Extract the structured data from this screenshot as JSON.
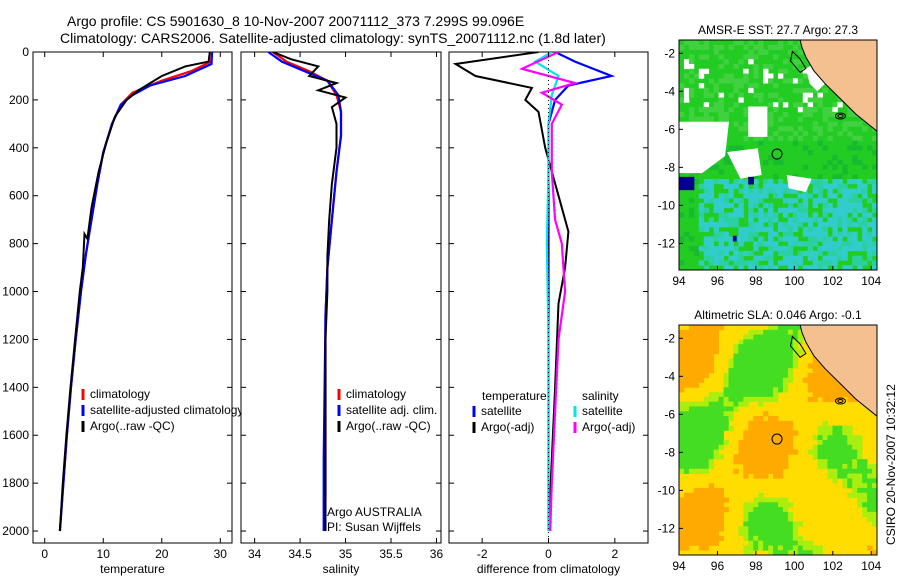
{
  "header": {
    "line1": "Argo profile: CS 5901630_8 10-Nov-2007 20071112_373 7.299S 99.096E",
    "line2": "Climatology: CARS2006. Satellite-adjusted climatology: synTS_20071112.nc (1.8d later)"
  },
  "side_text": "CSIRO 20-Nov-2007 10:32:12",
  "chart_data": [
    {
      "type": "line",
      "id": "temperature",
      "xlabel": "temperature",
      "ylabel": "",
      "xlim": [
        -2,
        32
      ],
      "ylim": [
        2050,
        0
      ],
      "xticks": [
        0,
        10,
        20,
        30
      ],
      "yticks": [
        0,
        200,
        400,
        600,
        800,
        1000,
        1200,
        1400,
        1600,
        1800,
        2000
      ],
      "legend": {
        "placement": "lower-center",
        "entries": [
          "climatology",
          "satellite-adjusted climatology",
          "Argo(..raw -QC)"
        ]
      },
      "series": [
        {
          "name": "climatology",
          "color": "#ff0000",
          "points": [
            [
              28.6,
              0
            ],
            [
              28.4,
              40
            ],
            [
              25,
              80
            ],
            [
              20,
              120
            ],
            [
              15,
              170
            ],
            [
              13,
              220
            ],
            [
              11.5,
              300
            ],
            [
              10,
              420
            ],
            [
              9,
              550
            ],
            [
              8,
              700
            ],
            [
              7,
              850
            ],
            [
              6.2,
              1000
            ],
            [
              5.3,
              1200
            ],
            [
              4.5,
              1400
            ],
            [
              3.8,
              1600
            ],
            [
              3.2,
              1800
            ],
            [
              2.6,
              2000
            ]
          ]
        },
        {
          "name": "satellite-adjusted climatology",
          "color": "#0000ff",
          "points": [
            [
              28.6,
              0
            ],
            [
              28.5,
              50
            ],
            [
              24,
              100
            ],
            [
              18,
              140
            ],
            [
              15,
              180
            ],
            [
              13,
              220
            ],
            [
              11.5,
              300
            ],
            [
              10,
              420
            ],
            [
              9,
              550
            ],
            [
              8,
              700
            ],
            [
              7,
              850
            ],
            [
              6.2,
              1000
            ],
            [
              5.3,
              1200
            ],
            [
              4.5,
              1400
            ],
            [
              3.8,
              1600
            ],
            [
              3.2,
              1800
            ],
            [
              2.6,
              2000
            ]
          ]
        },
        {
          "name": "Argo(..raw -QC)",
          "color": "#000000",
          "points": [
            [
              28.2,
              0
            ],
            [
              28,
              40
            ],
            [
              24,
              60
            ],
            [
              20,
              100
            ],
            [
              16,
              160
            ],
            [
              14,
              200
            ],
            [
              12,
              270
            ],
            [
              10.5,
              380
            ],
            [
              9.2,
              500
            ],
            [
              8,
              650
            ],
            [
              7.3,
              780
            ],
            [
              6.8,
              760
            ],
            [
              6.5,
              900
            ],
            [
              6,
              1000
            ],
            [
              5.2,
              1200
            ],
            [
              4.4,
              1400
            ],
            [
              3.7,
              1600
            ],
            [
              3.1,
              1800
            ],
            [
              2.6,
              2000
            ]
          ]
        }
      ]
    },
    {
      "type": "line",
      "id": "salinity",
      "xlabel": "salinity",
      "ylabel": "",
      "xlim": [
        33.85,
        36.05
      ],
      "ylim": [
        2050,
        0
      ],
      "xticks": [
        34,
        34.5,
        35,
        35.5,
        36
      ],
      "legend": {
        "placement": "lower-center",
        "entries": [
          "climatology",
          "satellite adj. clim.",
          "Argo(..raw -QC)"
        ]
      },
      "annotation": [
        "Argo AUSTRALIA",
        "PI: Susan Wijffels"
      ],
      "series": [
        {
          "name": "climatology",
          "color": "#ff0000",
          "points": [
            [
              34.2,
              0
            ],
            [
              34.35,
              40
            ],
            [
              34.6,
              80
            ],
            [
              34.8,
              120
            ],
            [
              34.9,
              180
            ],
            [
              34.95,
              250
            ],
            [
              34.95,
              350
            ],
            [
              34.9,
              500
            ],
            [
              34.85,
              700
            ],
            [
              34.8,
              900
            ],
            [
              34.78,
              1100
            ],
            [
              34.78,
              1400
            ],
            [
              34.78,
              1700
            ],
            [
              34.78,
              1870
            ]
          ]
        },
        {
          "name": "satellite adj. clim.",
          "color": "#0000ff",
          "points": [
            [
              34.15,
              0
            ],
            [
              34.3,
              40
            ],
            [
              34.55,
              80
            ],
            [
              34.8,
              120
            ],
            [
              34.92,
              180
            ],
            [
              34.95,
              250
            ],
            [
              34.95,
              350
            ],
            [
              34.9,
              500
            ],
            [
              34.85,
              700
            ],
            [
              34.8,
              900
            ],
            [
              34.78,
              1100
            ],
            [
              34.77,
              1400
            ],
            [
              34.76,
              1700
            ],
            [
              34.76,
              2000
            ]
          ]
        },
        {
          "name": "Argo(..raw -QC)",
          "color": "#000000",
          "points": [
            [
              34.2,
              0
            ],
            [
              34.4,
              30
            ],
            [
              34.7,
              60
            ],
            [
              34.6,
              100
            ],
            [
              34.9,
              130
            ],
            [
              34.7,
              160
            ],
            [
              35.0,
              190
            ],
            [
              34.85,
              230
            ],
            [
              34.9,
              300
            ],
            [
              34.9,
              400
            ],
            [
              34.85,
              550
            ],
            [
              34.82,
              700
            ],
            [
              34.8,
              850
            ],
            [
              34.8,
              1000
            ],
            [
              34.78,
              1200
            ],
            [
              34.78,
              1500
            ],
            [
              34.78,
              1800
            ],
            [
              34.78,
              2000
            ]
          ]
        }
      ]
    },
    {
      "type": "line",
      "id": "difference",
      "xlabel": "difference from climatology",
      "ylabel": "",
      "xlim": [
        -3,
        3
      ],
      "ylim": [
        2050,
        0
      ],
      "xticks": [
        -2,
        0,
        2
      ],
      "legend": {
        "placement": "lower-center",
        "columns": [
          {
            "title": "temperature",
            "entries": [
              "satellite",
              "Argo(-adj)"
            ]
          },
          {
            "title": "salinity",
            "entries": [
              "satellite",
              "Argo(-adj)"
            ]
          }
        ]
      },
      "series": [
        {
          "name": "temperature satellite",
          "color": "#0000ff",
          "points": [
            [
              0.2,
              0
            ],
            [
              0.8,
              40
            ],
            [
              1.9,
              100
            ],
            [
              0.6,
              140
            ],
            [
              0.2,
              200
            ],
            [
              0,
              300
            ],
            [
              0,
              500
            ],
            [
              0,
              700
            ],
            [
              0,
              1000
            ],
            [
              0,
              1500
            ],
            [
              0,
              2000
            ]
          ]
        },
        {
          "name": "temperature Argo(-adj)",
          "color": "#000000",
          "points": [
            [
              -0.3,
              0
            ],
            [
              -2.8,
              50
            ],
            [
              -2.2,
              100
            ],
            [
              -0.5,
              150
            ],
            [
              -0.7,
              200
            ],
            [
              -0.3,
              250
            ],
            [
              -0.1,
              400
            ],
            [
              0.3,
              600
            ],
            [
              0.6,
              750
            ],
            [
              0.5,
              900
            ],
            [
              0.3,
              1050
            ],
            [
              0.2,
              1400
            ],
            [
              0.1,
              1700
            ],
            [
              0,
              2000
            ]
          ]
        },
        {
          "name": "salinity satellite",
          "color": "#00e5e5",
          "points": [
            [
              0.1,
              0
            ],
            [
              -0.4,
              40
            ],
            [
              0.3,
              100
            ],
            [
              0.1,
              180
            ],
            [
              0,
              300
            ],
            [
              0,
              500
            ],
            [
              -0.05,
              800
            ],
            [
              0,
              1200
            ],
            [
              0,
              2000
            ]
          ]
        },
        {
          "name": "salinity Argo(-adj)",
          "color": "#ff00ff",
          "points": [
            [
              0.3,
              0
            ],
            [
              -0.8,
              70
            ],
            [
              0.8,
              130
            ],
            [
              -0.2,
              170
            ],
            [
              0.4,
              220
            ],
            [
              0.1,
              300
            ],
            [
              0.1,
              500
            ],
            [
              0.2,
              700
            ],
            [
              0.4,
              800
            ],
            [
              0.5,
              1000
            ],
            [
              0.3,
              1200
            ],
            [
              0.2,
              1500
            ],
            [
              0.1,
              1800
            ],
            [
              0.05,
              2000
            ]
          ]
        }
      ]
    },
    {
      "type": "heatmap",
      "id": "sst",
      "title": "AMSR-E SST: 27.7  Argo: 27.3",
      "xlim": [
        94,
        104.3
      ],
      "ylim": [
        -13.4,
        -1.3
      ],
      "xticks": [
        94,
        96,
        98,
        100,
        102,
        104
      ],
      "yticks": [
        -2,
        -4,
        -6,
        -8,
        -10,
        -12
      ],
      "marker": [
        99.1,
        -7.3
      ],
      "colors": {
        "land": "#f5c090",
        "main": "#22cc22",
        "cool": "#33cccc",
        "hot": "#ffee00",
        "missing": "#ffffff",
        "deep": "#00008b"
      }
    },
    {
      "type": "heatmap",
      "id": "sla",
      "title": "Altimetric SLA: 0.046  Argo: -0.1",
      "xlim": [
        94,
        104.3
      ],
      "ylim": [
        -13.4,
        -1.3
      ],
      "xticks": [
        94,
        96,
        98,
        100,
        102,
        104
      ],
      "yticks": [
        -2,
        -4,
        -6,
        -8,
        -10,
        -12
      ],
      "marker": [
        99.1,
        -7.3
      ],
      "colors": {
        "land": "#f5c090",
        "high": "#ffaa00",
        "mid": "#ffdd00",
        "low": "#44dd22"
      }
    }
  ]
}
